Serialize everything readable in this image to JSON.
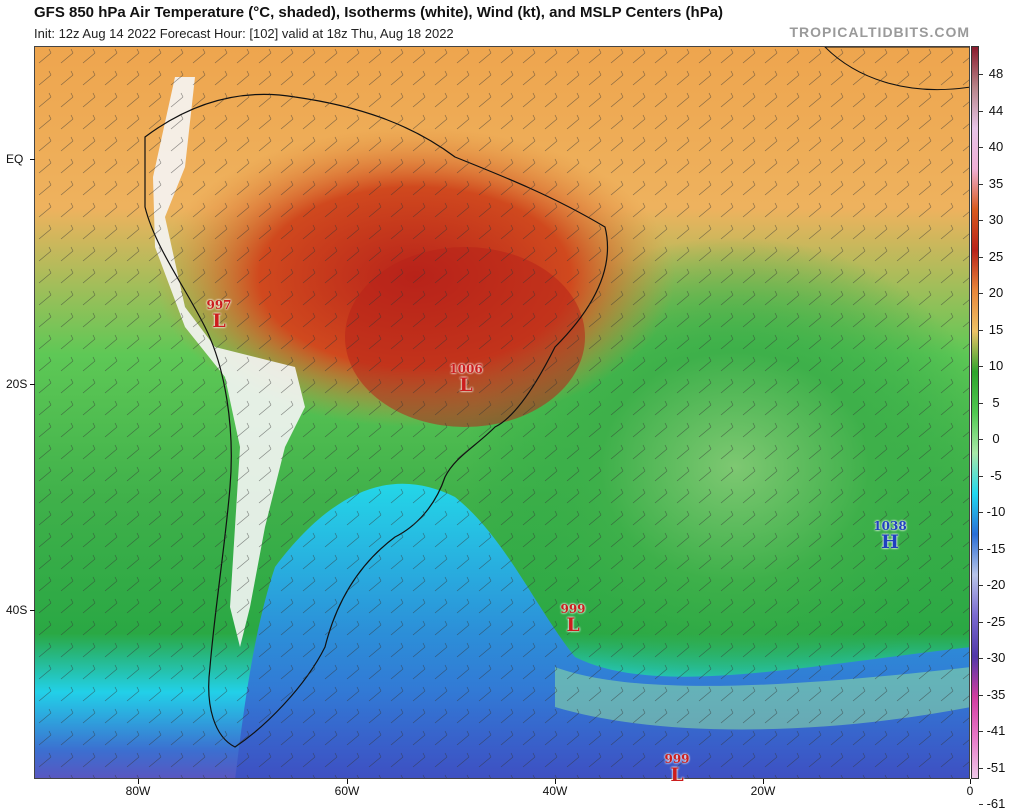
{
  "header": {
    "title": "GFS 850 hPa Air Temperature (°C, shaded), Isotherms (white), Wind (kt), and MSLP Centers (hPa)",
    "subtitle": "Init: 12z Aug 14 2022   Forecast Hour: [102]   valid at 18z Thu, Aug 18 2022",
    "brand": "TROPICALTIDBITS.COM"
  },
  "axes": {
    "lat_labels": [
      "EQ",
      "20S",
      "40S"
    ],
    "lon_labels": [
      "80W",
      "60W",
      "40W",
      "20W",
      "0"
    ]
  },
  "colorbar": {
    "labels": [
      "48",
      "44",
      "40",
      "35",
      "30",
      "25",
      "20",
      "15",
      "10",
      "5",
      "0",
      "-5",
      "-10",
      "-15",
      "-20",
      "-25",
      "-30",
      "-35",
      "-41",
      "-51",
      "-61"
    ],
    "colors": [
      "#8a1a2c",
      "#b8858a",
      "#e7c4e7",
      "#f0b0d6",
      "#d85a1e",
      "#b8231a",
      "#e8863a",
      "#eec266",
      "#2ea42c",
      "#50c850",
      "#a8e8a8",
      "#20d8f0",
      "#2a6ed6",
      "#b8c4e8",
      "#7a6ad0",
      "#5038a8",
      "#d03ca0",
      "#e878c8",
      "#f0c8e8"
    ]
  },
  "pressure_centers": [
    {
      "value": "997",
      "symbol": "L",
      "color": "#cc1d1d"
    },
    {
      "value": "1006",
      "symbol": "L",
      "color": "#cc1d1d"
    },
    {
      "value": "999",
      "symbol": "L",
      "color": "#cc1d1d"
    },
    {
      "value": "999",
      "symbol": "L",
      "color": "#cc1d1d"
    },
    {
      "value": "1038",
      "symbol": "H",
      "color": "#2040c0"
    }
  ]
}
